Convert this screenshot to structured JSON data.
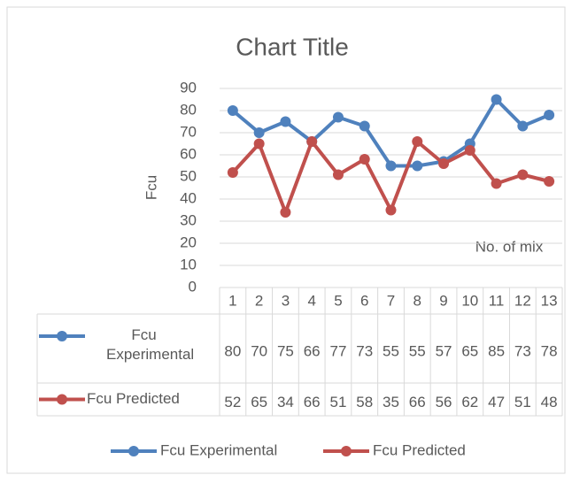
{
  "chart_data": {
    "type": "line",
    "title": "Chart Title",
    "y_label": "Fcu",
    "x_label": "No. of mix",
    "categories": [
      "1",
      "2",
      "3",
      "4",
      "5",
      "6",
      "7",
      "8",
      "9",
      "10",
      "11",
      "12",
      "13"
    ],
    "series": [
      {
        "name": "Fcu Experimental",
        "color": "#4f81bd",
        "values": [
          80,
          70,
          75,
          66,
          77,
          73,
          55,
          55,
          57,
          65,
          85,
          73,
          78
        ]
      },
      {
        "name": "Fcu Predicted",
        "color": "#c0504d",
        "values": [
          52,
          65,
          34,
          66,
          51,
          58,
          35,
          66,
          56,
          62,
          47,
          51,
          48
        ]
      }
    ],
    "ylim": [
      0,
      90
    ],
    "yticks": [
      0,
      10,
      20,
      30,
      40,
      50,
      60,
      70,
      80,
      90
    ],
    "data_table": true,
    "legend": "bottom"
  }
}
